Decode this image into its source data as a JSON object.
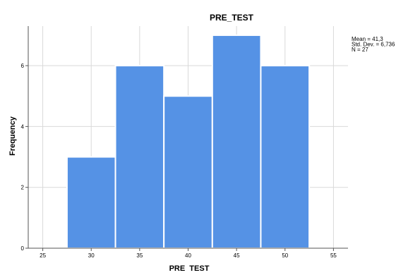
{
  "chart_data": {
    "type": "bar",
    "title": "PRE_TEST",
    "xlabel": "PRE_TEST",
    "ylabel": "Frequency",
    "categories": [
      "30",
      "35",
      "40",
      "45",
      "50"
    ],
    "bin_centers": [
      30,
      35,
      40,
      45,
      50
    ],
    "bin_width": 5,
    "values": [
      3,
      6,
      5,
      7,
      6
    ],
    "xlim": [
      23.5,
      56.5
    ],
    "ylim": [
      0,
      7.3
    ],
    "x_ticks": [
      25,
      30,
      35,
      40,
      45,
      50,
      55
    ],
    "y_ticks": [
      0,
      2,
      4,
      6
    ],
    "grid": true,
    "bar_color": "#5592e5",
    "stats": [
      "Mean = 41,3",
      "Std. Dev. = 6,736",
      "N = 27"
    ]
  }
}
